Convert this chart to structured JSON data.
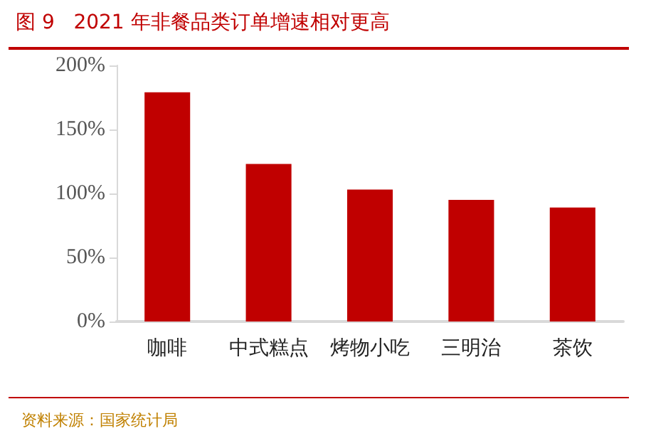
{
  "chart_data": {
    "type": "bar",
    "title": "图 9   2021 年非餐品类订单增速相对更高",
    "categories": [
      "咖啡",
      "中式糕点",
      "烤物小吃",
      "三明治",
      "茶饮"
    ],
    "values": [
      179,
      123,
      103,
      95,
      89
    ],
    "color": "#c00000",
    "ylim": [
      0,
      200
    ],
    "yticks": [
      {
        "value": 0,
        "label": "0%"
      },
      {
        "value": 50,
        "label": "50%"
      },
      {
        "value": 100,
        "label": "100%"
      },
      {
        "value": 150,
        "label": "150%"
      },
      {
        "value": 200,
        "label": "200%"
      }
    ],
    "grid": false,
    "annotations": [
      "资料来源：国家统计局"
    ]
  }
}
